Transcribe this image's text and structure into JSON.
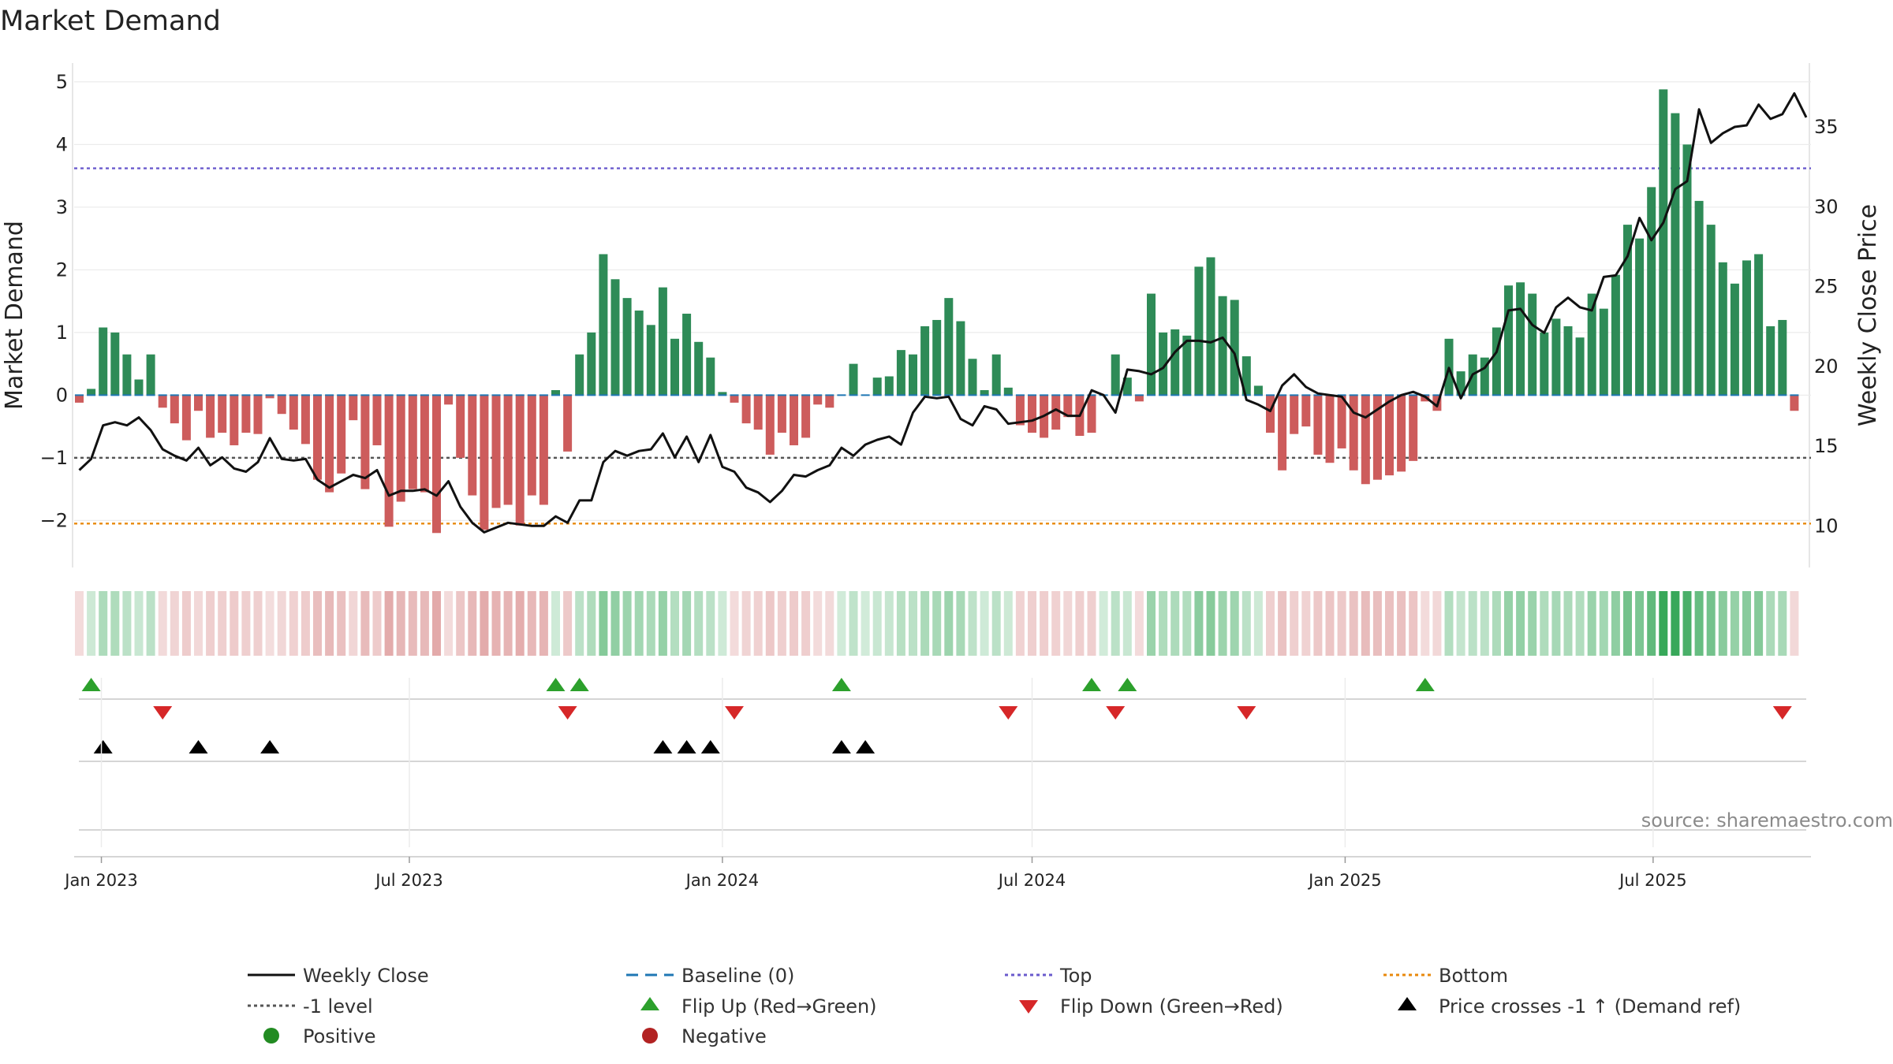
{
  "chart_data": {
    "type": "bar",
    "title": "Market Demand",
    "ylabel_left": "Market Demand",
    "ylabel_right": "Weekly Close Price",
    "source": "source: sharemaestro.com",
    "ylim_left": [
      -2.75,
      5.3
    ],
    "yticks_left": [
      -2,
      -1,
      0,
      1,
      2,
      3,
      4,
      5
    ],
    "ylim_right": [
      7.4,
      39.0
    ],
    "yticks_right": [
      10,
      15,
      20,
      25,
      30,
      35
    ],
    "x_start": "2022-12-19",
    "x_ticks": [
      {
        "label": "Jan 2023",
        "date": "2023-01-01"
      },
      {
        "label": "Jul 2023",
        "date": "2023-07-01"
      },
      {
        "label": "Jan 2024",
        "date": "2024-01-01"
      },
      {
        "label": "Jul 2024",
        "date": "2024-07-01"
      },
      {
        "label": "Jan 2025",
        "date": "2025-01-01"
      },
      {
        "label": "Jul 2025",
        "date": "2025-07-01"
      }
    ],
    "levels": {
      "top": 3.62,
      "minus_one": -1.0,
      "bottom": -2.05,
      "baseline": 0
    },
    "colors": {
      "positive": "#2e8b57",
      "negative": "#cd5c5c",
      "close": "#111111",
      "top": "#6a5acd",
      "bottom": "#e8890c",
      "minus_one": "#555555",
      "baseline": "#1f77b4",
      "flip_up": "#2ca02c",
      "flip_down": "#d62728",
      "cross": "#000000",
      "positive_dot": "#228b22",
      "negative_dot": "#b22222"
    },
    "demand": [
      -0.12,
      0.1,
      1.08,
      1.0,
      0.65,
      0.25,
      0.65,
      -0.2,
      -0.45,
      -0.72,
      -0.25,
      -0.68,
      -0.6,
      -0.8,
      -0.6,
      -0.62,
      -0.05,
      -0.3,
      -0.55,
      -0.78,
      -1.35,
      -1.55,
      -1.25,
      -0.4,
      -1.5,
      -0.8,
      -2.1,
      -1.7,
      -1.5,
      -1.55,
      -2.2,
      -0.15,
      -1.0,
      -1.6,
      -2.15,
      -1.8,
      -1.75,
      -2.08,
      -1.6,
      -1.75,
      0.08,
      -0.9,
      0.65,
      1.0,
      2.25,
      1.85,
      1.55,
      1.35,
      1.12,
      1.72,
      0.9,
      1.3,
      0.85,
      0.6,
      0.05,
      -0.12,
      -0.45,
      -0.55,
      -0.95,
      -0.6,
      -0.8,
      -0.68,
      -0.15,
      -0.2,
      0.0,
      0.5,
      0.0,
      0.28,
      0.3,
      0.72,
      0.65,
      1.1,
      1.2,
      1.55,
      1.18,
      0.58,
      0.08,
      0.65,
      0.12,
      -0.48,
      -0.6,
      -0.68,
      -0.55,
      -0.35,
      -0.65,
      -0.6,
      0.0,
      0.65,
      0.28,
      -0.1,
      1.62,
      1.0,
      1.05,
      0.95,
      2.05,
      2.2,
      1.58,
      1.52,
      0.62,
      0.15,
      -0.6,
      -1.2,
      -0.62,
      -0.5,
      -0.95,
      -1.08,
      -0.85,
      -1.2,
      -1.42,
      -1.35,
      -1.28,
      -1.22,
      -1.05,
      -0.1,
      -0.25,
      0.9,
      0.38,
      0.65,
      0.6,
      1.08,
      1.75,
      1.8,
      1.62,
      1.0,
      1.22,
      1.1,
      0.92,
      1.62,
      1.38,
      1.92,
      2.72,
      2.5,
      3.32,
      4.88,
      4.5,
      4.0,
      3.1,
      2.72,
      2.12,
      1.78,
      2.15,
      2.25,
      1.1,
      1.2,
      -0.25
    ],
    "weekly_close": [
      13.5,
      14.2,
      16.3,
      16.5,
      16.3,
      16.8,
      16.0,
      14.8,
      14.4,
      14.1,
      14.9,
      13.8,
      14.3,
      13.6,
      13.4,
      14.0,
      15.5,
      14.2,
      14.1,
      14.2,
      12.9,
      12.4,
      12.8,
      13.2,
      13.0,
      13.5,
      11.9,
      12.2,
      12.2,
      12.3,
      11.9,
      12.8,
      11.2,
      10.2,
      9.6,
      9.9,
      10.2,
      10.1,
      10.0,
      10.0,
      10.6,
      10.2,
      11.6,
      11.6,
      14.0,
      14.7,
      14.4,
      14.7,
      14.8,
      15.8,
      14.3,
      15.6,
      14.0,
      15.7,
      13.7,
      13.4,
      12.4,
      12.1,
      11.5,
      12.2,
      13.2,
      13.1,
      13.5,
      13.8,
      14.9,
      14.4,
      15.1,
      15.4,
      15.6,
      15.1,
      17.1,
      18.1,
      18.0,
      18.1,
      16.7,
      16.3,
      17.5,
      17.3,
      16.4,
      16.5,
      16.6,
      16.9,
      17.3,
      16.9,
      16.9,
      18.5,
      18.2,
      17.1,
      19.8,
      19.7,
      19.5,
      19.9,
      20.9,
      21.6,
      21.6,
      21.5,
      21.8,
      20.8,
      17.9,
      17.6,
      17.2,
      18.8,
      19.5,
      18.7,
      18.3,
      18.2,
      18.1,
      17.1,
      16.8,
      17.3,
      17.8,
      18.2,
      18.4,
      18.1,
      17.5,
      19.9,
      18.0,
      19.5,
      19.9,
      20.9,
      23.5,
      23.6,
      22.6,
      22.1,
      23.7,
      24.3,
      23.7,
      23.5,
      25.6,
      25.7,
      26.9,
      29.3,
      27.9,
      29.0,
      31.1,
      31.6,
      36.1,
      34.0,
      34.6,
      35.0,
      35.1,
      36.4,
      35.5,
      35.8,
      37.1,
      35.6
    ],
    "flip_up_weeks": [
      1,
      40,
      42,
      64,
      85,
      88,
      113
    ],
    "flip_down_weeks": [
      7,
      41,
      55,
      78,
      87,
      98,
      143
    ],
    "price_cross_weeks": [
      2,
      10,
      16,
      49,
      51,
      53,
      64,
      66
    ],
    "legend": [
      {
        "label": "Weekly Close",
        "symbol": "line",
        "key": "close"
      },
      {
        "label": "Baseline (0)",
        "symbol": "dash",
        "key": "baseline"
      },
      {
        "label": "Top",
        "symbol": "dot",
        "key": "top"
      },
      {
        "label": "Bottom",
        "symbol": "dot",
        "key": "bottom"
      },
      {
        "label": "-1 level",
        "symbol": "dot",
        "key": "minus_one"
      },
      {
        "label": "Flip Up (Red→Green)",
        "symbol": "tri-up",
        "key": "flip_up"
      },
      {
        "label": "Flip Down (Green→Red)",
        "symbol": "tri-down",
        "key": "flip_down"
      },
      {
        "label": "Price crosses -1 ↑ (Demand ref)",
        "symbol": "tri-up",
        "key": "cross"
      },
      {
        "label": "Positive",
        "symbol": "circle",
        "key": "positive_dot"
      },
      {
        "label": "Negative",
        "symbol": "circle",
        "key": "negative_dot"
      }
    ]
  }
}
